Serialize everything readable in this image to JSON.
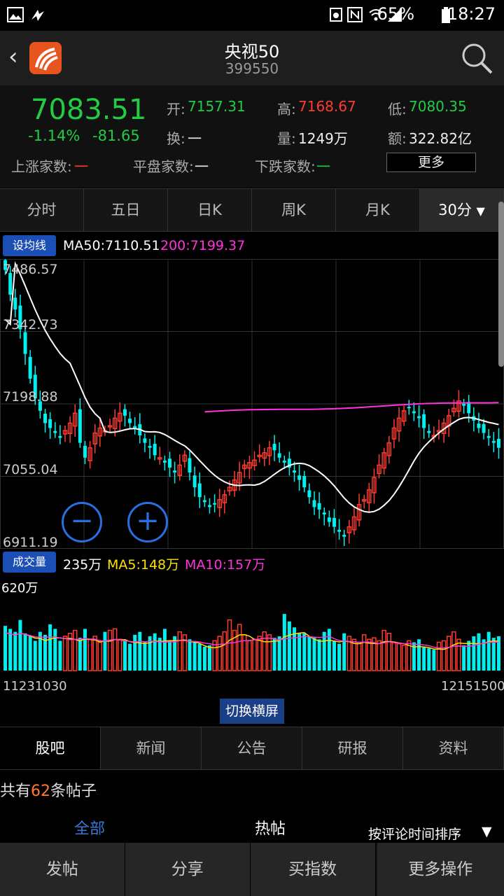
{
  "status_bar": {
    "battery": "65%",
    "time": "18:27"
  },
  "nav": {
    "title": "央视50",
    "code": "399550"
  },
  "quote": {
    "price": "7083.51",
    "change_pct": "-1.14%",
    "change": "-81.65",
    "open_label": "开:",
    "open": "7157.31",
    "high_label": "高:",
    "high": "7168.67",
    "low_label": "低:",
    "low": "7080.35",
    "turnover_label": "换:",
    "turnover": "一",
    "volume_label": "量:",
    "volume": "1249万",
    "amount_label": "额:",
    "amount": "322.82亿",
    "up_label": "上涨家数:",
    "up": "一",
    "flat_label": "平盘家数:",
    "flat": "一",
    "down_label": "下跌家数:",
    "down": "一",
    "more": "更多"
  },
  "tabs": [
    "分时",
    "五日",
    "日K",
    "周K",
    "月K",
    "30分"
  ],
  "ma_row": {
    "button": "设均线",
    "ma50": "MA50:7110.51",
    "ma200": "200:7199.37"
  },
  "chart_data": {
    "type": "candlestick",
    "y_labels": [
      "7486.57",
      "7342.73",
      "7198.88",
      "7055.04",
      "6911.19"
    ],
    "ylim": [
      6911.19,
      7486.57
    ],
    "x_start": "11231030",
    "x_end": "12151500",
    "ma200_start_index": 40,
    "colors": {
      "up": "#ff3b30",
      "down": "#00f0f0",
      "ma50": "#ffffff",
      "ma200": "#ff33dd"
    },
    "closes": [
      7470,
      7420,
      7390,
      7350,
      7300,
      7250,
      7210,
      7185,
      7160,
      7150,
      7140,
      7130,
      7145,
      7160,
      7180,
      7120,
      7090,
      7110,
      7140,
      7150,
      7145,
      7155,
      7170,
      7180,
      7175,
      7160,
      7150,
      7135,
      7120,
      7110,
      7095,
      7090,
      7080,
      7070,
      7060,
      7075,
      7095,
      7060,
      7030,
      7010,
      7000,
      6990,
      6995,
      7005,
      7015,
      7030,
      7045,
      7060,
      7075,
      7080,
      7085,
      7095,
      7100,
      7110,
      7105,
      7090,
      7080,
      7070,
      7060,
      7045,
      7030,
      7010,
      6990,
      6985,
      6975,
      6960,
      6950,
      6940,
      6930,
      6950,
      6970,
      6995,
      7005,
      7025,
      7050,
      7075,
      7100,
      7120,
      7150,
      7170,
      7185,
      7190,
      7180,
      7170,
      7150,
      7140,
      7135,
      7145,
      7160,
      7175,
      7190,
      7205,
      7195,
      7180,
      7165,
      7150,
      7140,
      7130,
      7120,
      7110
    ]
  },
  "vol_row": {
    "button": "成交量",
    "vol": "235万",
    "ma5": "MA5:148万",
    "ma10": "MA10:157万"
  },
  "vol_chart": {
    "max_label": "620万",
    "max": 620,
    "ma5_color": "#ffe000",
    "ma10_color": "#ff33dd",
    "values": [
      300,
      280,
      260,
      340,
      250,
      230,
      200,
      260,
      240,
      310,
      280,
      200,
      230,
      250,
      270,
      220,
      280,
      210,
      230,
      190,
      260,
      270,
      280,
      210,
      200,
      180,
      240,
      260,
      190,
      230,
      250,
      220,
      280,
      200,
      230,
      260,
      240,
      210,
      190,
      180,
      160,
      170,
      200,
      230,
      260,
      340,
      270,
      310,
      240,
      200,
      210,
      230,
      260,
      240,
      220,
      230,
      380,
      330,
      290,
      250,
      250,
      230,
      220,
      210,
      260,
      280,
      200,
      180,
      250,
      230,
      210,
      190,
      240,
      210,
      220,
      200,
      270,
      250,
      190,
      180,
      170,
      200,
      190,
      210,
      160,
      150,
      140,
      190,
      200,
      230,
      260,
      210,
      170,
      200,
      230,
      250,
      210,
      260,
      220,
      230
    ]
  },
  "landscape_button": "切换横屏",
  "bottom_tabs": [
    "股吧",
    "新闻",
    "公告",
    "研报",
    "资料"
  ],
  "posts": {
    "prefix": "共有",
    "count": "62",
    "suffix": "条帖子"
  },
  "filters": {
    "all": "全部",
    "hot": "热帖",
    "sort": "按评论时间排序"
  },
  "actions": [
    "发帖",
    "分享",
    "买指数",
    "更多操作"
  ]
}
